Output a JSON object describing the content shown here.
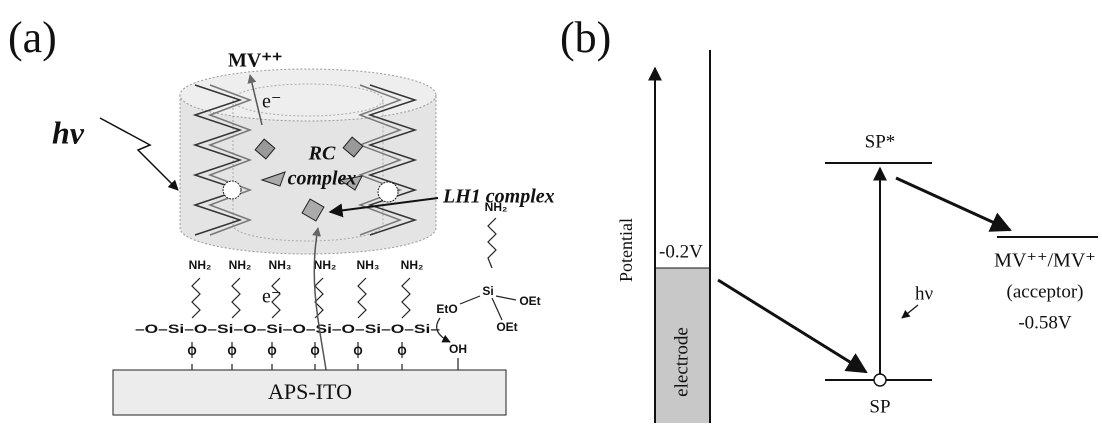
{
  "panel_a": {
    "label": "(a)",
    "mv": "MV⁺⁺",
    "electron_top": "e⁻",
    "electron_bottom": "e⁻",
    "light": "hv",
    "rc_complex": [
      "RC",
      "complex"
    ],
    "lh1_complex": "LH1 complex",
    "amines": [
      "NH₂",
      "NH₂",
      "NH₃",
      "NH₂",
      "NH₃",
      "NH₂"
    ],
    "backbone": "–O–Si–O–Si–O–Si–O–Si–O–Si–O–Si–",
    "anchors": [
      "O",
      "O",
      "O",
      "O",
      "O",
      "O"
    ],
    "silane": {
      "amine": "NH₂",
      "si": "Si",
      "eto": "EtO",
      "oet_1": "OEt",
      "oet_2": "OEt",
      "oh": "OH"
    },
    "substrate": "APS-ITO"
  },
  "panel_b": {
    "label": "(b)",
    "axis_label": "Potential",
    "electrode_potential": "-0.2V",
    "electrode": "electrode",
    "excited": "SP*",
    "ground": "SP",
    "light": "hν",
    "acceptor": [
      "MV⁺⁺/MV⁺",
      "(acceptor)",
      "-0.58V"
    ]
  }
}
